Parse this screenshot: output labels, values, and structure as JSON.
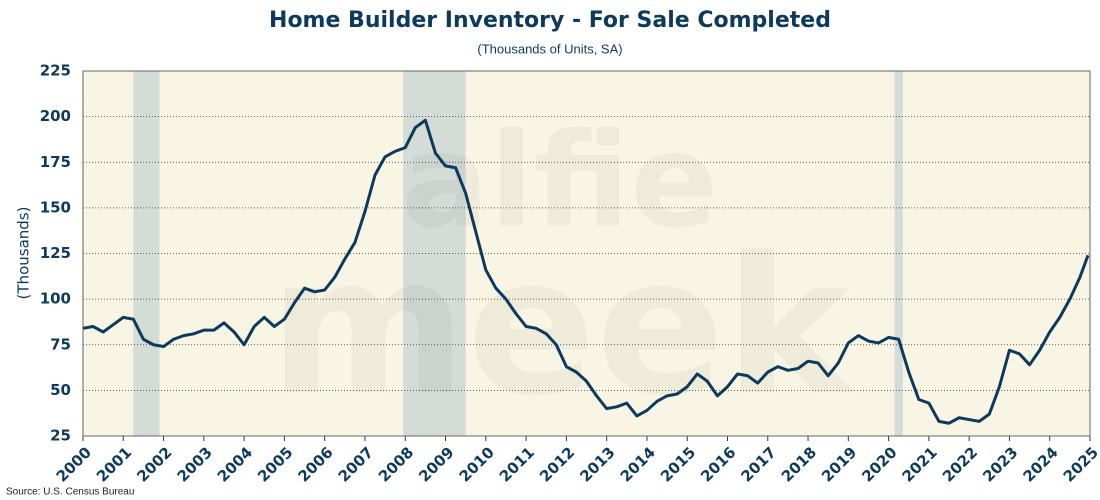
{
  "chart_data": {
    "type": "line",
    "title": "Home Builder Inventory - For Sale Completed",
    "subtitle": "(Thousands of Units, SA)",
    "y_label": "(Thousands)",
    "source": "Source: U.S. Census Bureau",
    "watermark": [
      "alfie",
      "meek"
    ],
    "x": [
      2000,
      2000.25,
      2000.5,
      2000.75,
      2001,
      2001.25,
      2001.5,
      2001.75,
      2002,
      2002.25,
      2002.5,
      2002.75,
      2003,
      2003.25,
      2003.5,
      2003.75,
      2004,
      2004.25,
      2004.5,
      2004.75,
      2005,
      2005.25,
      2005.5,
      2005.75,
      2006,
      2006.25,
      2006.5,
      2006.75,
      2007,
      2007.25,
      2007.5,
      2007.75,
      2008,
      2008.25,
      2008.5,
      2008.75,
      2009,
      2009.25,
      2009.5,
      2009.75,
      2010,
      2010.25,
      2010.5,
      2010.75,
      2011,
      2011.25,
      2011.5,
      2011.75,
      2012,
      2012.25,
      2012.5,
      2012.75,
      2013,
      2013.25,
      2013.5,
      2013.75,
      2014,
      2014.25,
      2014.5,
      2014.75,
      2015,
      2015.25,
      2015.5,
      2015.75,
      2016,
      2016.25,
      2016.5,
      2016.75,
      2017,
      2017.25,
      2017.5,
      2017.75,
      2018,
      2018.25,
      2018.5,
      2018.75,
      2019,
      2019.25,
      2019.5,
      2019.75,
      2020,
      2020.25,
      2020.5,
      2020.75,
      2021,
      2021.25,
      2021.5,
      2021.75,
      2022,
      2022.25,
      2022.5,
      2022.75,
      2023,
      2023.25,
      2023.5,
      2023.75,
      2024,
      2024.25,
      2024.5,
      2024.75,
      2024.95
    ],
    "series": [
      {
        "name": "For Sale Completed",
        "color": "#0d3a5c",
        "values": [
          84,
          85,
          82,
          86,
          90,
          89,
          78,
          75,
          74,
          78,
          80,
          81,
          83,
          83,
          87,
          82,
          75,
          85,
          90,
          85,
          89,
          98,
          106,
          104,
          105,
          112,
          122,
          131,
          148,
          168,
          178,
          181,
          183,
          194,
          198,
          180,
          173,
          172,
          158,
          137,
          116,
          106,
          100,
          92,
          85,
          84,
          81,
          75,
          63,
          60,
          55,
          47,
          40,
          41,
          43,
          36,
          39,
          44,
          47,
          48,
          52,
          59,
          55,
          47,
          52,
          59,
          58,
          54,
          60,
          63,
          61,
          62,
          66,
          65,
          58,
          65,
          76,
          80,
          77,
          76,
          79,
          78,
          60,
          45,
          43,
          33,
          32,
          35,
          34,
          33,
          37,
          52,
          72,
          70,
          64,
          72,
          82,
          90,
          100,
          112,
          124
        ]
      }
    ],
    "shaded_periods": [
      [
        2001.25,
        2001.9
      ],
      [
        2007.95,
        2009.5
      ],
      [
        2020.15,
        2020.35
      ]
    ],
    "xlim": [
      2000,
      2025
    ],
    "xticks": [
      2000,
      2001,
      2002,
      2003,
      2004,
      2005,
      2006,
      2007,
      2008,
      2009,
      2010,
      2011,
      2012,
      2013,
      2014,
      2015,
      2016,
      2017,
      2018,
      2019,
      2020,
      2021,
      2022,
      2023,
      2024,
      2025
    ],
    "ylim": [
      25,
      225
    ],
    "yticks": [
      25,
      50,
      75,
      100,
      125,
      150,
      175,
      200,
      225
    ],
    "grid": true
  }
}
